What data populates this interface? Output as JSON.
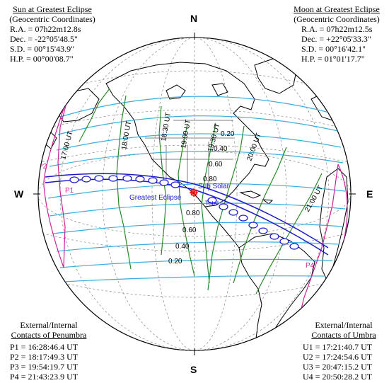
{
  "top_caption": "",
  "bottom_caption": "",
  "sun": {
    "title": "Sun at Greatest Eclipse",
    "subtitle": "(Geocentric Coordinates)",
    "ra": "R.A. = 07h22m12.8s",
    "dec": "Dec. = -22°05'48.5\"",
    "sd": "S.D. = 00°15'43.9\"",
    "hp": "H.P. = 00°00'08.7\""
  },
  "moon": {
    "title": "Moon at Greatest Eclipse",
    "subtitle": "(Geocentric Coordinates)",
    "ra": "R.A. = 07h22m12.5s",
    "dec": "Dec. = +22°05'33.3\"",
    "sd": "S.D. = 00°16'42.1\"",
    "hp": "H.P. = 01°01'17.7\""
  },
  "penumbra": {
    "title": "External/Internal",
    "subtitle": "Contacts of Penumbra",
    "p1": "P1 = 16:28:46.4 UT",
    "p2": "P2 = 18:17:49.3 UT",
    "p3": "P3 = 19:54:19.7 UT",
    "p4": "P4 = 21:43:23.9 UT"
  },
  "umbra": {
    "title": "External/Internal",
    "subtitle": "Contacts of Umbra",
    "u1": "U1 = 17:21:40.7 UT",
    "u2": "U2 = 17:24:54.6 UT",
    "u3": "U3 = 20:47:15.2 UT",
    "u4": "U4 = 20:50:28.2 UT"
  },
  "compass": {
    "n": "N",
    "s": "S",
    "w": "W",
    "e": "E"
  },
  "map_labels": {
    "greatest_eclipse": "Greatest Eclipse",
    "sub_solar": "Sub Solar",
    "total": "Total",
    "p1": "P1",
    "p2": "P2",
    "p3": "P3",
    "p4": "P4",
    "mag_020": "0.20",
    "mag_040": "0.40",
    "mag_060": "0.60",
    "mag_080": "0.80",
    "mag_080b": "0.80",
    "mag_060b": "0.60",
    "mag_040b": "0.40",
    "mag_020b": "0.20",
    "ut_1700": "17:00 UT",
    "ut_1800": "18:00 UT",
    "ut_1830": "18:30 UT",
    "ut_1900": "19:00 UT",
    "ut_1930": "19:30 UT",
    "ut_2000": "20:00 UT",
    "ut_2100": "21:00 UT"
  },
  "colors": {
    "path": "#1a1acc",
    "penumbra_limits": "#cc2299",
    "magnitude_lines": "#3aaedc",
    "time_lines": "#2a8a2a",
    "land": "#000000"
  }
}
